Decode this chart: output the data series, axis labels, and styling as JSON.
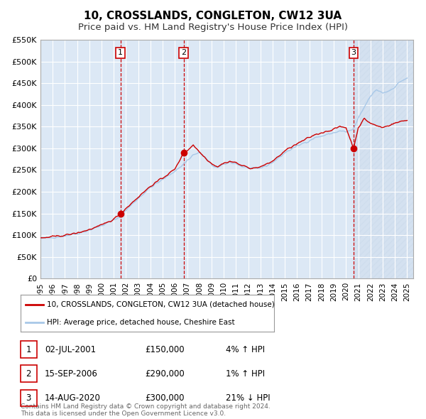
{
  "title": "10, CROSSLANDS, CONGLETON, CW12 3UA",
  "subtitle": "Price paid vs. HM Land Registry's House Price Index (HPI)",
  "ylim": [
    0,
    550000
  ],
  "yticks": [
    0,
    50000,
    100000,
    150000,
    200000,
    250000,
    300000,
    350000,
    400000,
    450000,
    500000,
    550000
  ],
  "ytick_labels": [
    "£0",
    "£50K",
    "£100K",
    "£150K",
    "£200K",
    "£250K",
    "£300K",
    "£350K",
    "£400K",
    "£450K",
    "£500K",
    "£550K"
  ],
  "xlim_start": 1995.0,
  "xlim_end": 2025.5,
  "xticks": [
    1995,
    1996,
    1997,
    1998,
    1999,
    2000,
    2001,
    2002,
    2003,
    2004,
    2005,
    2006,
    2007,
    2008,
    2009,
    2010,
    2011,
    2012,
    2013,
    2014,
    2015,
    2016,
    2017,
    2018,
    2019,
    2020,
    2021,
    2022,
    2023,
    2024,
    2025
  ],
  "hpi_color": "#a8c8e8",
  "price_color": "#cc0000",
  "sale_dot_color": "#cc0000",
  "vline_color": "#cc0000",
  "background_color": "#dce8f5",
  "grid_color": "#ffffff",
  "shade_color": "#dce8f5",
  "hatch_color": "#c8d8ea",
  "sale1_x": 2001.54,
  "sale1_y": 150000,
  "sale2_x": 2006.71,
  "sale2_y": 290000,
  "sale3_x": 2020.62,
  "sale3_y": 300000,
  "legend_label_price": "10, CROSSLANDS, CONGLETON, CW12 3UA (detached house)",
  "legend_label_hpi": "HPI: Average price, detached house, Cheshire East",
  "table_rows": [
    [
      "1",
      "02-JUL-2001",
      "£150,000",
      "4% ↑ HPI"
    ],
    [
      "2",
      "15-SEP-2006",
      "£290,000",
      "1% ↑ HPI"
    ],
    [
      "3",
      "14-AUG-2020",
      "£300,000",
      "21% ↓ HPI"
    ]
  ],
  "footer_text": "Contains HM Land Registry data © Crown copyright and database right 2024.\nThis data is licensed under the Open Government Licence v3.0.",
  "title_fontsize": 11,
  "subtitle_fontsize": 9.5
}
